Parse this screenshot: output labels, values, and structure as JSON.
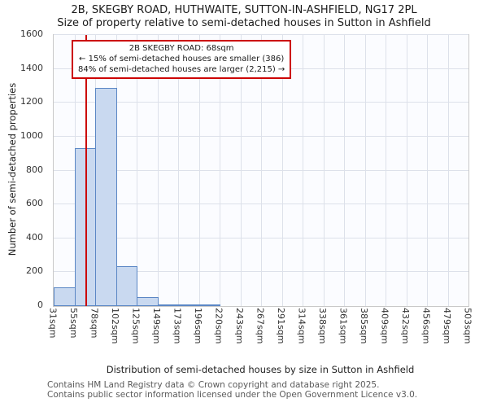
{
  "title": {
    "line1": "2B, SKEGBY ROAD, HUTHWAITE, SUTTON-IN-ASHFIELD, NG17 2PL",
    "line2": "Size of property relative to semi-detached houses in Sutton in Ashfield"
  },
  "axes": {
    "x_label": "Distribution of semi-detached houses by size in Sutton in Ashfield",
    "y_label": "Number of semi-detached properties"
  },
  "annotation": {
    "line1": "2B SKEGBY ROAD: 68sqm",
    "line2": "← 15% of semi-detached houses are smaller (386)",
    "line3": "84% of semi-detached houses are larger (2,215) →"
  },
  "footer": {
    "line1": "Contains HM Land Registry data © Crown copyright and database right 2025.",
    "line2": "Contains public sector information licensed under the Open Government Licence v3.0."
  },
  "colors": {
    "bar_fill": "#c9d9f0",
    "bar_border": "#5b87c5",
    "marker_line": "#cc0000",
    "annotation_border": "#cc0000",
    "grid": "#dde1ea"
  },
  "chart_data": {
    "type": "bar",
    "title": "2B, SKEGBY ROAD, HUTHWAITE, SUTTON-IN-ASHFIELD, NG17 2PL",
    "subtitle": "Size of property relative to semi-detached houses in Sutton in Ashfield",
    "xlabel": "Distribution of semi-detached houses by size in Sutton in Ashfield",
    "ylabel": "Number of semi-detached properties",
    "x_tick_unit": "sqm",
    "bin_edges_sqm": [
      31,
      55,
      78,
      102,
      125,
      149,
      173,
      196,
      220,
      243,
      267,
      291,
      314,
      338,
      361,
      385,
      409,
      432,
      456,
      479,
      503
    ],
    "counts": [
      110,
      930,
      1290,
      235,
      55,
      12,
      10,
      5,
      0,
      0,
      0,
      0,
      0,
      0,
      0,
      0,
      0,
      0,
      0,
      0
    ],
    "ylim": [
      0,
      1600
    ],
    "ytick_step": 200,
    "grid": true,
    "legend": false,
    "marker_value_sqm": 68
  }
}
